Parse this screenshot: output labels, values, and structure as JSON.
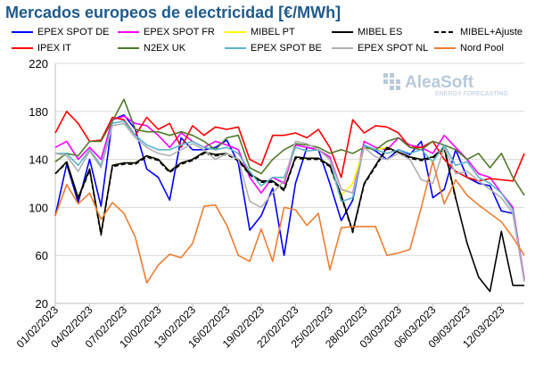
{
  "chart_data": {
    "type": "line",
    "title": "Mercados europeos de electricidad [€/MWh]",
    "ylim": [
      20,
      220
    ],
    "yticks": [
      20,
      60,
      100,
      140,
      180,
      220
    ],
    "xticks": [
      "01/02/2023",
      "04/02/2023",
      "07/02/2023",
      "10/02/2023",
      "13/02/2023",
      "16/02/2023",
      "19/02/2023",
      "22/02/2023",
      "25/02/2023",
      "28/02/2023",
      "03/03/2023",
      "06/03/2023",
      "09/03/2023",
      "12/03/2023"
    ],
    "x": [
      "01/02",
      "02/02",
      "03/02",
      "04/02",
      "05/02",
      "06/02",
      "07/02",
      "08/02",
      "09/02",
      "10/02",
      "11/02",
      "12/02",
      "13/02",
      "14/02",
      "15/02",
      "16/02",
      "17/02",
      "18/02",
      "19/02",
      "20/02",
      "21/02",
      "22/02",
      "23/02",
      "24/02",
      "25/02",
      "26/02",
      "27/02",
      "28/02",
      "01/03",
      "02/03",
      "03/03",
      "04/03",
      "05/03",
      "06/03",
      "07/03",
      "08/03",
      "09/03",
      "10/03",
      "11/03",
      "12/03",
      "13/03",
      "14/03"
    ],
    "series": [
      {
        "name": "EPEX SPOT DE",
        "color": "#0000ff",
        "dash": "",
        "values": [
          93,
          136,
          104,
          140,
          101,
          173,
          177,
          165,
          132,
          125,
          106,
          158,
          148,
          148,
          150,
          156,
          137,
          81,
          93,
          116,
          60,
          120,
          150,
          148,
          120,
          89,
          106,
          152,
          147,
          140,
          148,
          144,
          155,
          108,
          115,
          148,
          125,
          120,
          118,
          97,
          95,
          40
        ]
      },
      {
        "name": "EPEX SPOT FR",
        "color": "#ff00ff",
        "dash": "",
        "values": [
          150,
          155,
          140,
          150,
          140,
          173,
          176,
          170,
          168,
          160,
          150,
          162,
          155,
          150,
          155,
          152,
          148,
          125,
          112,
          125,
          120,
          152,
          150,
          148,
          142,
          115,
          112,
          155,
          150,
          148,
          158,
          152,
          150,
          145,
          160,
          150,
          140,
          128,
          125,
          112,
          100,
          40
        ]
      },
      {
        "name": "MIBEL PT",
        "color": "#ffff00",
        "dash": "",
        "values": [
          128,
          138,
          108,
          132,
          78,
          135,
          137,
          137,
          143,
          140,
          130,
          137,
          140,
          146,
          144,
          145,
          140,
          128,
          122,
          122,
          115,
          142,
          141,
          141,
          135,
          110,
          120,
          150,
          148,
          150,
          146,
          142,
          140,
          142,
          148,
          110,
          null,
          null,
          null,
          null,
          null,
          null
        ]
      },
      {
        "name": "MIBEL ES",
        "color": "#000000",
        "dash": "",
        "values": [
          128,
          138,
          108,
          132,
          78,
          135,
          137,
          137,
          143,
          140,
          130,
          137,
          140,
          146,
          144,
          145,
          140,
          128,
          122,
          122,
          115,
          142,
          141,
          141,
          135,
          110,
          80,
          120,
          135,
          150,
          146,
          142,
          140,
          142,
          150,
          108,
          70,
          42,
          30,
          80,
          35,
          35
        ]
      },
      {
        "name": "MIBEL+Ajuste",
        "color": "#000000",
        "dash": "5,3",
        "values": [
          128,
          137,
          107,
          131,
          77,
          134,
          136,
          136,
          142,
          139,
          129,
          136,
          139,
          145,
          143,
          144,
          139,
          127,
          121,
          121,
          114,
          141,
          140,
          140,
          134,
          109,
          79,
          119,
          134,
          149,
          145,
          141,
          139,
          141,
          149,
          107,
          null,
          null,
          null,
          null,
          null,
          null
        ]
      },
      {
        "name": "IPEX IT",
        "color": "#ff0000",
        "dash": "",
        "values": [
          162,
          180,
          170,
          155,
          156,
          175,
          173,
          160,
          175,
          165,
          170,
          150,
          168,
          160,
          167,
          165,
          167,
          140,
          135,
          160,
          160,
          162,
          158,
          165,
          150,
          125,
          173,
          162,
          168,
          167,
          162,
          150,
          150,
          155,
          140,
          130,
          125,
          122,
          124,
          123,
          122,
          145
        ]
      },
      {
        "name": "N2EX UK",
        "color": "#4f7a28",
        "dash": "",
        "values": [
          138,
          145,
          143,
          155,
          155,
          172,
          190,
          165,
          163,
          163,
          160,
          163,
          160,
          155,
          148,
          158,
          160,
          133,
          128,
          140,
          148,
          153,
          152,
          150,
          145,
          148,
          145,
          150,
          148,
          155,
          158,
          150,
          148,
          155,
          152,
          148,
          140,
          145,
          133,
          145,
          125,
          110
        ]
      },
      {
        "name": "EPEX SPOT BE",
        "color": "#5ab4c8",
        "dash": "",
        "values": [
          145,
          145,
          135,
          148,
          135,
          170,
          172,
          160,
          152,
          148,
          148,
          152,
          155,
          150,
          148,
          150,
          145,
          130,
          118,
          125,
          125,
          150,
          147,
          148,
          140,
          105,
          108,
          152,
          148,
          145,
          148,
          145,
          148,
          138,
          152,
          135,
          138,
          125,
          120,
          112,
          98,
          38
        ]
      },
      {
        "name": "EPEX SPOT NL",
        "color": "#b0b0b0",
        "dash": "",
        "values": [
          145,
          143,
          130,
          147,
          133,
          168,
          170,
          158,
          150,
          145,
          143,
          148,
          153,
          148,
          140,
          145,
          140,
          105,
          100,
          112,
          122,
          155,
          153,
          148,
          140,
          115,
          112,
          150,
          142,
          140,
          145,
          140,
          123,
          120,
          150,
          128,
          130,
          122,
          115,
          108,
          95,
          38
        ]
      },
      {
        "name": "Nord Pool",
        "color": "#ed7d31",
        "dash": "",
        "values": [
          93,
          119,
          103,
          112,
          90,
          104,
          95,
          75,
          37,
          52,
          61,
          58,
          70,
          101,
          102,
          85,
          60,
          55,
          82,
          55,
          100,
          98,
          85,
          95,
          48,
          83,
          84,
          84,
          84,
          60,
          62,
          65,
          100,
          138,
          103,
          123,
          110,
          102,
          95,
          88,
          75,
          60
        ]
      }
    ]
  },
  "logo": {
    "name": "AleaSoft",
    "tagline": "ENERGY FORECASTING"
  }
}
